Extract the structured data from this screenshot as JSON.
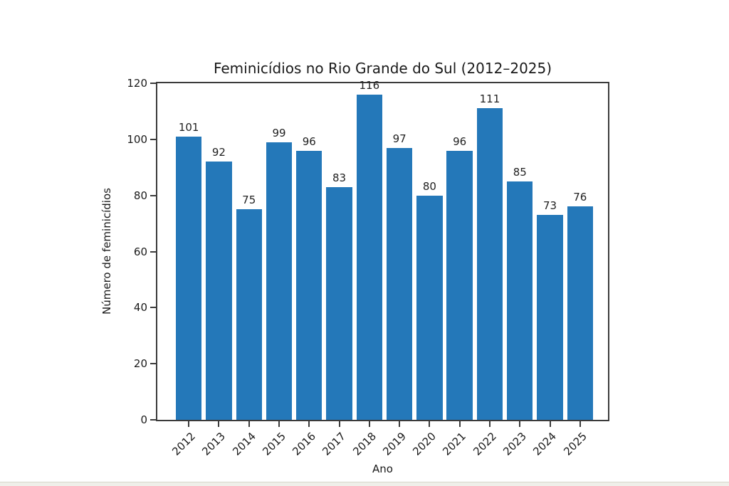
{
  "chart_data": {
    "type": "bar",
    "title": "Feminicídios no Rio Grande do Sul (2012–2025)",
    "xlabel": "Ano",
    "ylabel": "Número de feminicídios",
    "categories": [
      "2012",
      "2013",
      "2014",
      "2015",
      "2016",
      "2017",
      "2018",
      "2019",
      "2020",
      "2021",
      "2022",
      "2023",
      "2024",
      "2025"
    ],
    "values": [
      101,
      92,
      75,
      99,
      96,
      83,
      116,
      97,
      80,
      96,
      111,
      85,
      73,
      76
    ],
    "ylim": [
      0,
      120
    ],
    "yticks": [
      0,
      20,
      40,
      60,
      80,
      100,
      120
    ],
    "bar_color": "#2478b9",
    "axis_color": "#3b3b3b",
    "grid": false,
    "legend": null,
    "value_labels": true,
    "xtick_rotation_deg": 45
  }
}
